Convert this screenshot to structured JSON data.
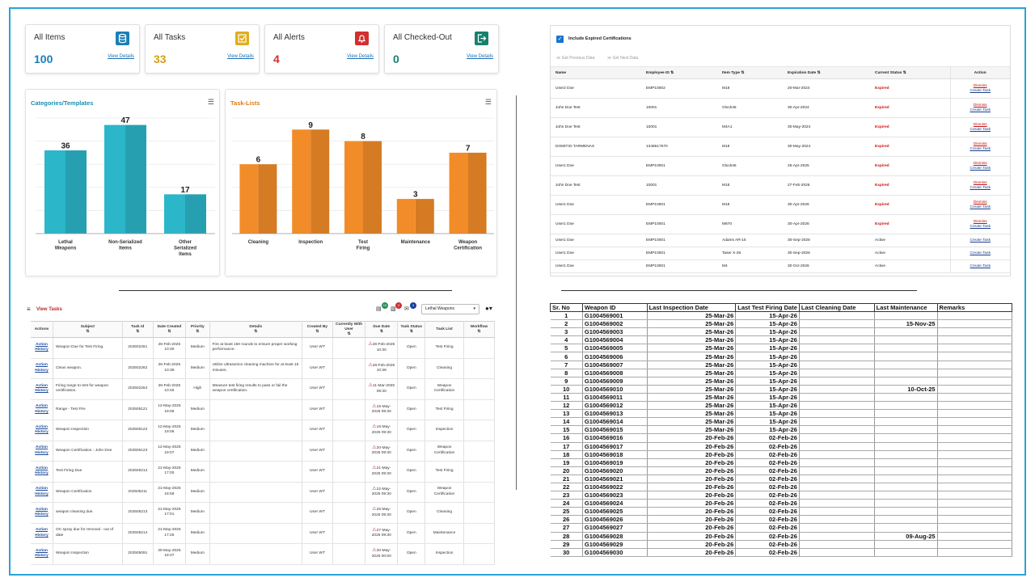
{
  "cards": [
    {
      "label": "All Items",
      "value": "100",
      "link": "View Details",
      "color": "#1a7fb8",
      "icon": "database-icon"
    },
    {
      "label": "All Tasks",
      "value": "33",
      "link": "View Details",
      "color": "#d4a017",
      "icon": "checkbox-icon"
    },
    {
      "label": "All Alerts",
      "value": "4",
      "link": "View Details",
      "color": "#d32f2f",
      "icon": "bell-icon"
    },
    {
      "label": "All Checked-Out",
      "value": "0",
      "link": "View Details",
      "color": "#17806d",
      "icon": "exit-icon"
    }
  ],
  "chart_data": [
    {
      "type": "bar",
      "title": "Categories/Templates",
      "categories": [
        "Lethal Weapons",
        "Non-Serialized Items",
        "Other Serialized Items"
      ],
      "values": [
        36,
        47,
        17
      ],
      "color": "#2bb6c9",
      "ylim": [
        0,
        50
      ]
    },
    {
      "type": "bar",
      "title": "Task-Lists",
      "categories": [
        "Cleaning",
        "Inspection",
        "Test Firing",
        "Maintenance",
        "Weapon Certification"
      ],
      "values": [
        6,
        9,
        8,
        3,
        7
      ],
      "color": "#f28c28",
      "ylim": [
        0,
        10
      ]
    }
  ],
  "cert": {
    "checkbox_label": "Include Expired Certifications",
    "prev": "Get Previous Data",
    "next": "Get Next Data",
    "columns": [
      "Name",
      "Employee ID",
      "Item Type",
      "Expiration Date",
      "Current Status",
      "Action"
    ],
    "dismiss": "Dismiss",
    "create": "Create Task",
    "rows": [
      {
        "name": "User2 Doe",
        "emp": "EMP10002",
        "item": "M18",
        "date": "20-Mar-2024",
        "status": "Expired"
      },
      {
        "name": "John Doe Test",
        "emp": "10001",
        "item": "Glock45",
        "date": "30-Apr-2024",
        "status": "Expired"
      },
      {
        "name": "John Doe Test",
        "emp": "10001",
        "item": "M4A1",
        "date": "30-May-2024",
        "status": "Expired"
      },
      {
        "name": "DOMITIO TARMENAS",
        "emp": "1346617570",
        "item": "M18",
        "date": "30-May-2024",
        "status": "Expired"
      },
      {
        "name": "User1 Doe",
        "emp": "EMP10001",
        "item": "Glock45",
        "date": "25-Apr-2025",
        "status": "Expired"
      },
      {
        "name": "John Doe Test",
        "emp": "10001",
        "item": "M18",
        "date": "27-Feb-2026",
        "status": "Expired"
      },
      {
        "name": "User1 Doe",
        "emp": "EMP10001",
        "item": "M18",
        "date": "30-Apr-2026",
        "status": "Expired"
      },
      {
        "name": "User1 Doe",
        "emp": "EMP10001",
        "item": "M870",
        "date": "30-Apr-2026",
        "status": "Expired"
      },
      {
        "name": "User1 Doe",
        "emp": "EMP10001",
        "item": "Adams AR-15",
        "date": "30-Sep-2026",
        "status": "Active"
      },
      {
        "name": "User1 Doe",
        "emp": "EMP10001",
        "item": "Taser X-26",
        "date": "30-Sep-2026",
        "status": "Active"
      },
      {
        "name": "User1 Doe",
        "emp": "EMP10001",
        "item": "M4",
        "date": "30-Oct-2026",
        "status": "Active"
      }
    ]
  },
  "tasks": {
    "title": "View Tasks",
    "filter": "Lethal Weapons",
    "badges": [
      "10",
      "0",
      "3"
    ],
    "columns": [
      "Actions",
      "Subject",
      "Task Id",
      "Date Created",
      "Priority",
      "Details",
      "Created By",
      "Currently With User",
      "Due Date",
      "Task Status",
      "Task List",
      "Workflow"
    ],
    "action": "Action",
    "history": "History",
    "rows": [
      {
        "subject": "Weapon Due for Test Firing.",
        "id": "202502261",
        "created": "26-Feb-2025 10:30",
        "priority": "Medium",
        "details": "Fire at least 150 rounds to ensure proper working performance.",
        "by": "User WT",
        "due": "26-Feb-2025 10:30",
        "status": "Open",
        "list": "Test Firing"
      },
      {
        "subject": "Clean weapon.",
        "id": "202502262",
        "created": "26-Feb-2025 10:38",
        "priority": "Medium",
        "details": "Utilize ultrasonice cleaning machine for at least 15 minutes.",
        "by": "User WT",
        "due": "28-Feb-2025 10:38",
        "status": "Open",
        "list": "Cleaning"
      },
      {
        "subject": "Firing range to test for weapon certification.",
        "id": "202502264",
        "created": "26-Feb-2025 10:45",
        "priority": "High",
        "details": "Measure test firing results to pass or fail the weapon certification.",
        "by": "User WT",
        "due": "11-Mar-2025 09:30",
        "status": "Open",
        "list": "Weapon Certification"
      },
      {
        "subject": "Range - Test Fire",
        "id": "202505121",
        "created": "12-May-2025 19:05",
        "priority": "Medium",
        "details": "",
        "by": "User WT",
        "due": "15-May-2025 09:30",
        "status": "Open",
        "list": "Test Firing"
      },
      {
        "subject": "Weapon Inspection",
        "id": "202505122",
        "created": "12-May-2025 19:06",
        "priority": "Medium",
        "details": "",
        "by": "User WT",
        "due": "16-May-2025 09:30",
        "status": "Open",
        "list": "Inspection"
      },
      {
        "subject": "Weapon Certification - John Doe",
        "id": "202505123",
        "created": "12-May-2025 19:07",
        "priority": "Medium",
        "details": "",
        "by": "User WT",
        "due": "20-May-2025 09:30",
        "status": "Open",
        "list": "Weapon Certification"
      },
      {
        "subject": "Test Firing Due",
        "id": "202505212",
        "created": "21-May-2025 17:00",
        "priority": "Medium",
        "details": "",
        "by": "User WT",
        "due": "21-May-2025 09:30",
        "status": "Open",
        "list": "Test Firing"
      },
      {
        "subject": "Weapon Certification",
        "id": "202505211",
        "created": "21-May-2025 16:59",
        "priority": "Medium",
        "details": "",
        "by": "User WT",
        "due": "22-May-2025 09:30",
        "status": "Open",
        "list": "Weapon Certification"
      },
      {
        "subject": "weapon cleaning due.",
        "id": "202505213",
        "created": "21-May-2025 17:01",
        "priority": "Medium",
        "details": "",
        "by": "User WT",
        "due": "26-May-2025 09:30",
        "status": "Open",
        "list": "Cleaning"
      },
      {
        "subject": "OC spray due for removal - out of date",
        "id": "202505214",
        "created": "21-May-2025 17:25",
        "priority": "Medium",
        "details": "",
        "by": "User WT",
        "due": "27-May-2025 09:30",
        "status": "Open",
        "list": "Maintenance"
      },
      {
        "subject": "Weapon Inspection",
        "id": "202505091",
        "created": "30-May-2025 18:37",
        "priority": "Medium",
        "details": "",
        "by": "User WT",
        "due": "30-May-2025 00:00",
        "status": "Open",
        "list": "Inspection"
      }
    ]
  },
  "weapons": {
    "columns": [
      "Sr. No",
      "Weapon ID",
      "Last Inspection Date",
      "Last Test Firing Date",
      "Last Cleaning Date",
      "Last Maintenance",
      "Remarks"
    ],
    "rows": [
      [
        "1",
        "G1004569001",
        "25-Mar-26",
        "15-Apr-26",
        "",
        ""
      ],
      [
        "2",
        "G1004569002",
        "25-Mar-26",
        "15-Apr-26",
        "",
        "15-Nov-25"
      ],
      [
        "3",
        "G1004569003",
        "25-Mar-26",
        "15-Apr-26",
        "",
        ""
      ],
      [
        "4",
        "G1004569004",
        "25-Mar-26",
        "15-Apr-26",
        "",
        ""
      ],
      [
        "5",
        "G1004569005",
        "25-Mar-26",
        "15-Apr-26",
        "",
        ""
      ],
      [
        "6",
        "G1004569006",
        "25-Mar-26",
        "15-Apr-26",
        "",
        ""
      ],
      [
        "7",
        "G1004569007",
        "25-Mar-26",
        "15-Apr-26",
        "",
        ""
      ],
      [
        "8",
        "G1004569008",
        "25-Mar-26",
        "15-Apr-26",
        "",
        ""
      ],
      [
        "9",
        "G1004569009",
        "25-Mar-26",
        "15-Apr-26",
        "",
        ""
      ],
      [
        "10",
        "G1004569010",
        "25-Mar-26",
        "15-Apr-26",
        "",
        "10-Oct-25"
      ],
      [
        "11",
        "G1004569011",
        "25-Mar-26",
        "15-Apr-26",
        "",
        ""
      ],
      [
        "12",
        "G1004569012",
        "25-Mar-26",
        "15-Apr-26",
        "",
        ""
      ],
      [
        "13",
        "G1004569013",
        "25-Mar-26",
        "15-Apr-26",
        "",
        ""
      ],
      [
        "14",
        "G1004569014",
        "25-Mar-26",
        "15-Apr-26",
        "",
        ""
      ],
      [
        "15",
        "G1004569015",
        "25-Mar-26",
        "15-Apr-26",
        "",
        ""
      ],
      [
        "16",
        "G1004569016",
        "20-Feb-26",
        "02-Feb-26",
        "",
        ""
      ],
      [
        "17",
        "G1004569017",
        "20-Feb-26",
        "02-Feb-26",
        "",
        ""
      ],
      [
        "18",
        "G1004569018",
        "20-Feb-26",
        "02-Feb-26",
        "",
        ""
      ],
      [
        "19",
        "G1004569019",
        "20-Feb-26",
        "02-Feb-26",
        "",
        ""
      ],
      [
        "20",
        "G1004569020",
        "20-Feb-26",
        "02-Feb-26",
        "",
        ""
      ],
      [
        "21",
        "G1004569021",
        "20-Feb-26",
        "02-Feb-26",
        "",
        ""
      ],
      [
        "22",
        "G1004569022",
        "20-Feb-26",
        "02-Feb-26",
        "",
        ""
      ],
      [
        "23",
        "G1004569023",
        "20-Feb-26",
        "02-Feb-26",
        "",
        ""
      ],
      [
        "24",
        "G1004569024",
        "20-Feb-26",
        "02-Feb-26",
        "",
        ""
      ],
      [
        "25",
        "G1004569025",
        "20-Feb-26",
        "02-Feb-26",
        "",
        ""
      ],
      [
        "26",
        "G1004569026",
        "20-Feb-26",
        "02-Feb-26",
        "",
        ""
      ],
      [
        "27",
        "G1004569027",
        "20-Feb-26",
        "02-Feb-26",
        "",
        ""
      ],
      [
        "28",
        "G1004569028",
        "20-Feb-26",
        "02-Feb-26",
        "",
        "09-Aug-25"
      ],
      [
        "29",
        "G1004569029",
        "20-Feb-26",
        "02-Feb-26",
        "",
        ""
      ],
      [
        "30",
        "G1004569030",
        "20-Feb-26",
        "02-Feb-26",
        "",
        ""
      ]
    ]
  }
}
